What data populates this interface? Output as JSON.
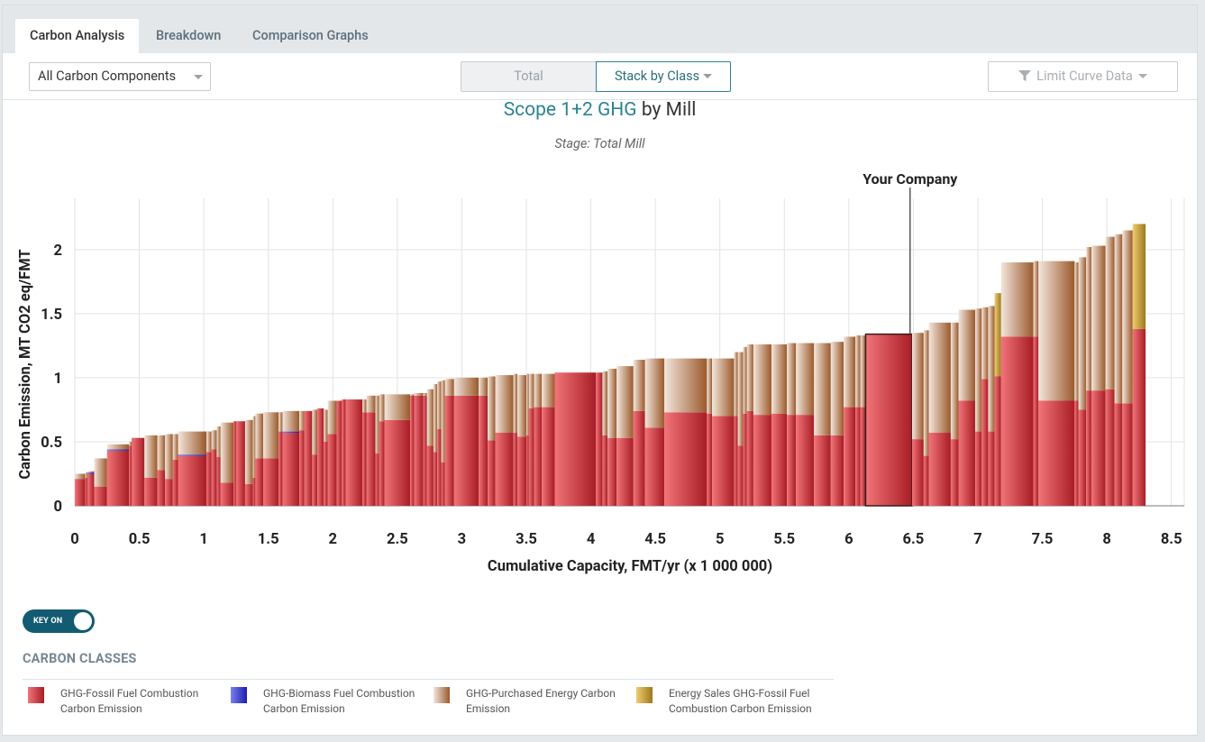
{
  "tabs": [
    {
      "label": "Carbon Analysis",
      "active": true
    },
    {
      "label": "Breakdown",
      "active": false
    },
    {
      "label": "Comparison Graphs",
      "active": false
    }
  ],
  "toolbar": {
    "components_select": "All Carbon Components",
    "view_total": "Total",
    "view_stack": "Stack by Class",
    "limit_curve": "Limit Curve Data"
  },
  "chart_header": {
    "title_highlight": "Scope 1+2 GHG",
    "title_rest": " by Mill",
    "subtitle": "Stage: Total Mill"
  },
  "key_toggle": {
    "label": "KEY ON",
    "on": true
  },
  "legend": {
    "title": "CARBON CLASSES",
    "items": [
      {
        "label": "GHG-Fossil Fuel Combustion Carbon Emission",
        "color_light": "#f17478",
        "color_dark": "#a81d25"
      },
      {
        "label": "GHG-Biomass Fuel Combustion Carbon Emission",
        "color_light": "#7b7ff0",
        "color_dark": "#1a1db0"
      },
      {
        "label": "GHG-Purchased Energy Carbon Emission",
        "color_light": "#f3e6dc",
        "color_dark": "#9a5a2c"
      },
      {
        "label": "Energy Sales GHG-Fossil Fuel Combustion Carbon Emission",
        "color_light": "#f0cc70",
        "color_dark": "#9c7a1c"
      }
    ]
  },
  "chart_data": {
    "type": "bar",
    "variant": "stacked cost curve (bar width = capacity)",
    "title": "Scope 1+2 GHG by Mill",
    "subtitle": "Stage: Total Mill",
    "xlabel": "Cumulative Capacity, FMT/yr (x 1 000 000)",
    "ylabel": "Carbon Emission, MT CO2 eq/FMT",
    "xlim": [
      0,
      8.6
    ],
    "ylim": [
      0,
      2.4
    ],
    "xticks": [
      "0",
      "0.5",
      "1",
      "1.5",
      "2",
      "2.5",
      "3",
      "3.5",
      "4",
      "4.5",
      "5",
      "5.5",
      "6",
      "6.5",
      "7",
      "7.5",
      "8",
      "8.5"
    ],
    "yticks": [
      "0",
      "0.5",
      "1",
      "1.5",
      "2"
    ],
    "annotation": {
      "label": "Your Company",
      "x": 6.3
    },
    "highlight_bar_index": 79,
    "series_names": [
      "GHG-Fossil Fuel Combustion Carbon Emission",
      "GHG-Biomass Fuel Combustion Carbon Emission",
      "GHG-Purchased Energy Carbon Emission",
      "Energy Sales GHG-Fossil Fuel Combustion Carbon Emission"
    ],
    "bars": [
      {
        "x0": 0.0,
        "x1": 0.08,
        "fossil": 0.21,
        "biomass": 0,
        "purchased": 0.04,
        "sales": 0
      },
      {
        "x0": 0.08,
        "x1": 0.1,
        "fossil": 0.22,
        "biomass": 0,
        "purchased": 0.04,
        "sales": 0
      },
      {
        "x0": 0.1,
        "x1": 0.15,
        "fossil": 0.25,
        "biomass": 0.01,
        "purchased": 0.01,
        "sales": 0
      },
      {
        "x0": 0.15,
        "x1": 0.25,
        "fossil": 0.15,
        "biomass": 0,
        "purchased": 0.22,
        "sales": 0
      },
      {
        "x0": 0.25,
        "x1": 0.42,
        "fossil": 0.43,
        "biomass": 0.01,
        "purchased": 0.04,
        "sales": 0
      },
      {
        "x0": 0.42,
        "x1": 0.44,
        "fossil": 0.47,
        "biomass": 0,
        "purchased": 0.03,
        "sales": 0
      },
      {
        "x0": 0.44,
        "x1": 0.54,
        "fossil": 0.53,
        "biomass": 0,
        "purchased": 0,
        "sales": 0
      },
      {
        "x0": 0.54,
        "x1": 0.64,
        "fossil": 0.22,
        "biomass": 0,
        "purchased": 0.33,
        "sales": 0
      },
      {
        "x0": 0.64,
        "x1": 0.7,
        "fossil": 0.28,
        "biomass": 0,
        "purchased": 0.27,
        "sales": 0
      },
      {
        "x0": 0.7,
        "x1": 0.76,
        "fossil": 0.21,
        "biomass": 0,
        "purchased": 0.35,
        "sales": 0
      },
      {
        "x0": 0.76,
        "x1": 0.8,
        "fossil": 0.36,
        "biomass": 0,
        "purchased": 0.2,
        "sales": 0
      },
      {
        "x0": 0.8,
        "x1": 1.02,
        "fossil": 0.39,
        "biomass": 0.01,
        "purchased": 0.18,
        "sales": 0
      },
      {
        "x0": 1.02,
        "x1": 1.06,
        "fossil": 0.42,
        "biomass": 0,
        "purchased": 0.16,
        "sales": 0
      },
      {
        "x0": 1.06,
        "x1": 1.1,
        "fossil": 0.44,
        "biomass": 0,
        "purchased": 0.15,
        "sales": 0
      },
      {
        "x0": 1.1,
        "x1": 1.13,
        "fossil": 0.38,
        "biomass": 0,
        "purchased": 0.24,
        "sales": 0
      },
      {
        "x0": 1.13,
        "x1": 1.23,
        "fossil": 0.18,
        "biomass": 0,
        "purchased": 0.47,
        "sales": 0
      },
      {
        "x0": 1.23,
        "x1": 1.25,
        "fossil": 0.66,
        "biomass": 0,
        "purchased": 0,
        "sales": 0
      },
      {
        "x0": 1.25,
        "x1": 1.32,
        "fossil": 0.66,
        "biomass": 0,
        "purchased": 0,
        "sales": 0
      },
      {
        "x0": 1.32,
        "x1": 1.38,
        "fossil": 0.17,
        "biomass": 0,
        "purchased": 0.5,
        "sales": 0
      },
      {
        "x0": 1.38,
        "x1": 1.4,
        "fossil": 0.22,
        "biomass": 0,
        "purchased": 0.48,
        "sales": 0
      },
      {
        "x0": 1.4,
        "x1": 1.46,
        "fossil": 0.37,
        "biomass": 0,
        "purchased": 0.35,
        "sales": 0
      },
      {
        "x0": 1.46,
        "x1": 1.58,
        "fossil": 0.37,
        "biomass": 0,
        "purchased": 0.36,
        "sales": 0
      },
      {
        "x0": 1.58,
        "x1": 1.61,
        "fossil": 0.58,
        "biomass": 0,
        "purchased": 0.15,
        "sales": 0
      },
      {
        "x0": 1.61,
        "x1": 1.74,
        "fossil": 0.57,
        "biomass": 0.01,
        "purchased": 0.16,
        "sales": 0
      },
      {
        "x0": 1.74,
        "x1": 1.78,
        "fossil": 0.59,
        "biomass": 0,
        "purchased": 0.15,
        "sales": 0
      },
      {
        "x0": 1.78,
        "x1": 1.84,
        "fossil": 0.74,
        "biomass": 0,
        "purchased": 0,
        "sales": 0
      },
      {
        "x0": 1.84,
        "x1": 1.88,
        "fossil": 0.4,
        "biomass": 0,
        "purchased": 0.35,
        "sales": 0
      },
      {
        "x0": 1.88,
        "x1": 1.93,
        "fossil": 0.76,
        "biomass": 0,
        "purchased": 0,
        "sales": 0
      },
      {
        "x0": 1.93,
        "x1": 1.96,
        "fossil": 0.5,
        "biomass": 0,
        "purchased": 0.25,
        "sales": 0
      },
      {
        "x0": 1.96,
        "x1": 2.03,
        "fossil": 0.56,
        "biomass": 0,
        "purchased": 0.26,
        "sales": 0
      },
      {
        "x0": 2.03,
        "x1": 2.07,
        "fossil": 0.82,
        "biomass": 0,
        "purchased": 0,
        "sales": 0
      },
      {
        "x0": 2.07,
        "x1": 2.1,
        "fossil": 0.83,
        "biomass": 0,
        "purchased": 0,
        "sales": 0
      },
      {
        "x0": 2.1,
        "x1": 2.23,
        "fossil": 0.83,
        "biomass": 0,
        "purchased": 0,
        "sales": 0
      },
      {
        "x0": 2.23,
        "x1": 2.26,
        "fossil": 0.73,
        "biomass": 0,
        "purchased": 0.1,
        "sales": 0
      },
      {
        "x0": 2.26,
        "x1": 2.33,
        "fossil": 0.73,
        "biomass": 0,
        "purchased": 0.13,
        "sales": 0
      },
      {
        "x0": 2.33,
        "x1": 2.36,
        "fossil": 0.41,
        "biomass": 0,
        "purchased": 0.45,
        "sales": 0
      },
      {
        "x0": 2.36,
        "x1": 2.4,
        "fossil": 0.66,
        "biomass": 0,
        "purchased": 0.21,
        "sales": 0
      },
      {
        "x0": 2.4,
        "x1": 2.6,
        "fossil": 0.67,
        "biomass": 0,
        "purchased": 0.2,
        "sales": 0
      },
      {
        "x0": 2.6,
        "x1": 2.63,
        "fossil": 0.86,
        "biomass": 0,
        "purchased": 0.01,
        "sales": 0
      },
      {
        "x0": 2.63,
        "x1": 2.7,
        "fossil": 0.86,
        "biomass": 0,
        "purchased": 0.02,
        "sales": 0
      },
      {
        "x0": 2.7,
        "x1": 2.73,
        "fossil": 0.86,
        "biomass": 0,
        "purchased": 0.02,
        "sales": 0
      },
      {
        "x0": 2.73,
        "x1": 2.78,
        "fossil": 0.47,
        "biomass": 0,
        "purchased": 0.44,
        "sales": 0
      },
      {
        "x0": 2.78,
        "x1": 2.81,
        "fossil": 0.42,
        "biomass": 0,
        "purchased": 0.53,
        "sales": 0
      },
      {
        "x0": 2.81,
        "x1": 2.84,
        "fossil": 0.6,
        "biomass": 0,
        "purchased": 0.37,
        "sales": 0
      },
      {
        "x0": 2.84,
        "x1": 2.87,
        "fossil": 0.34,
        "biomass": 0,
        "purchased": 0.64,
        "sales": 0
      },
      {
        "x0": 2.87,
        "x1": 2.94,
        "fossil": 0.86,
        "biomass": 0,
        "purchased": 0.13,
        "sales": 0
      },
      {
        "x0": 2.94,
        "x1": 3.13,
        "fossil": 0.86,
        "biomass": 0,
        "purchased": 0.14,
        "sales": 0
      },
      {
        "x0": 3.13,
        "x1": 3.2,
        "fossil": 0.86,
        "biomass": 0,
        "purchased": 0.14,
        "sales": 0
      },
      {
        "x0": 3.2,
        "x1": 3.26,
        "fossil": 0.51,
        "biomass": 0,
        "purchased": 0.5,
        "sales": 0
      },
      {
        "x0": 3.26,
        "x1": 3.4,
        "fossil": 0.57,
        "biomass": 0,
        "purchased": 0.45,
        "sales": 0
      },
      {
        "x0": 3.4,
        "x1": 3.43,
        "fossil": 0.57,
        "biomass": 0,
        "purchased": 0.46,
        "sales": 0
      },
      {
        "x0": 3.43,
        "x1": 3.5,
        "fossil": 0.54,
        "biomass": 0,
        "purchased": 0.48,
        "sales": 0
      },
      {
        "x0": 3.5,
        "x1": 3.52,
        "fossil": 0.55,
        "biomass": 0,
        "purchased": 0.48,
        "sales": 0
      },
      {
        "x0": 3.52,
        "x1": 3.56,
        "fossil": 0.76,
        "biomass": 0,
        "purchased": 0.27,
        "sales": 0
      },
      {
        "x0": 3.56,
        "x1": 3.62,
        "fossil": 0.77,
        "biomass": 0,
        "purchased": 0.26,
        "sales": 0
      },
      {
        "x0": 3.62,
        "x1": 3.72,
        "fossil": 0.77,
        "biomass": 0,
        "purchased": 0.26,
        "sales": 0
      },
      {
        "x0": 3.72,
        "x1": 4.04,
        "fossil": 1.04,
        "biomass": 0,
        "purchased": 0,
        "sales": 0
      },
      {
        "x0": 4.04,
        "x1": 4.09,
        "fossil": 1.04,
        "biomass": 0,
        "purchased": 0,
        "sales": 0
      },
      {
        "x0": 4.09,
        "x1": 4.13,
        "fossil": 0.55,
        "biomass": 0,
        "purchased": 0.5,
        "sales": 0
      },
      {
        "x0": 4.13,
        "x1": 4.2,
        "fossil": 0.53,
        "biomass": 0,
        "purchased": 0.54,
        "sales": 0
      },
      {
        "x0": 4.2,
        "x1": 4.33,
        "fossil": 0.53,
        "biomass": 0,
        "purchased": 0.56,
        "sales": 0
      },
      {
        "x0": 4.33,
        "x1": 4.42,
        "fossil": 0.74,
        "biomass": 0,
        "purchased": 0.4,
        "sales": 0
      },
      {
        "x0": 4.42,
        "x1": 4.57,
        "fossil": 0.61,
        "biomass": 0,
        "purchased": 0.54,
        "sales": 0
      },
      {
        "x0": 4.57,
        "x1": 4.9,
        "fossil": 0.73,
        "biomass": 0,
        "purchased": 0.42,
        "sales": 0
      },
      {
        "x0": 4.9,
        "x1": 4.94,
        "fossil": 0.72,
        "biomass": 0,
        "purchased": 0.43,
        "sales": 0
      },
      {
        "x0": 4.94,
        "x1": 5.11,
        "fossil": 0.7,
        "biomass": 0,
        "purchased": 0.45,
        "sales": 0
      },
      {
        "x0": 5.11,
        "x1": 5.14,
        "fossil": 0.7,
        "biomass": 0,
        "purchased": 0.5,
        "sales": 0
      },
      {
        "x0": 5.14,
        "x1": 5.18,
        "fossil": 0.47,
        "biomass": 0,
        "purchased": 0.73,
        "sales": 0
      },
      {
        "x0": 5.18,
        "x1": 5.21,
        "fossil": 0.72,
        "biomass": 0,
        "purchased": 0.52,
        "sales": 0
      },
      {
        "x0": 5.21,
        "x1": 5.26,
        "fossil": 0.74,
        "biomass": 0,
        "purchased": 0.52,
        "sales": 0
      },
      {
        "x0": 5.26,
        "x1": 5.4,
        "fossil": 0.71,
        "biomass": 0,
        "purchased": 0.55,
        "sales": 0
      },
      {
        "x0": 5.4,
        "x1": 5.52,
        "fossil": 0.72,
        "biomass": 0,
        "purchased": 0.54,
        "sales": 0
      },
      {
        "x0": 5.52,
        "x1": 5.59,
        "fossil": 0.71,
        "biomass": 0,
        "purchased": 0.56,
        "sales": 0
      },
      {
        "x0": 5.59,
        "x1": 5.73,
        "fossil": 0.71,
        "biomass": 0,
        "purchased": 0.56,
        "sales": 0
      },
      {
        "x0": 5.73,
        "x1": 5.86,
        "fossil": 0.55,
        "biomass": 0,
        "purchased": 0.72,
        "sales": 0
      },
      {
        "x0": 5.86,
        "x1": 5.96,
        "fossil": 0.55,
        "biomass": 0,
        "purchased": 0.73,
        "sales": 0
      },
      {
        "x0": 5.96,
        "x1": 6.05,
        "fossil": 0.77,
        "biomass": 0,
        "purchased": 0.55,
        "sales": 0
      },
      {
        "x0": 6.05,
        "x1": 6.09,
        "fossil": 0.77,
        "biomass": 0,
        "purchased": 0.56,
        "sales": 0
      },
      {
        "x0": 6.09,
        "x1": 6.13,
        "fossil": 0.77,
        "biomass": 0,
        "purchased": 0.56,
        "sales": 0
      },
      {
        "x0": 6.13,
        "x1": 6.49,
        "fossil": 1.34,
        "biomass": 0,
        "purchased": 0,
        "sales": 0
      },
      {
        "x0": 6.49,
        "x1": 6.58,
        "fossil": 0.52,
        "biomass": 0,
        "purchased": 0.83,
        "sales": 0
      },
      {
        "x0": 6.58,
        "x1": 6.62,
        "fossil": 0.39,
        "biomass": 0,
        "purchased": 0.98,
        "sales": 0
      },
      {
        "x0": 6.62,
        "x1": 6.79,
        "fossil": 0.57,
        "biomass": 0,
        "purchased": 0.86,
        "sales": 0
      },
      {
        "x0": 6.79,
        "x1": 6.85,
        "fossil": 0.52,
        "biomass": 0,
        "purchased": 0.91,
        "sales": 0
      },
      {
        "x0": 6.85,
        "x1": 6.98,
        "fossil": 0.82,
        "biomass": 0,
        "purchased": 0.71,
        "sales": 0
      },
      {
        "x0": 6.98,
        "x1": 7.03,
        "fossil": 0.58,
        "biomass": 0,
        "purchased": 0.96,
        "sales": 0
      },
      {
        "x0": 7.03,
        "x1": 7.08,
        "fossil": 0.99,
        "biomass": 0,
        "purchased": 0.56,
        "sales": 0
      },
      {
        "x0": 7.08,
        "x1": 7.13,
        "fossil": 0.58,
        "biomass": 0,
        "purchased": 0.98,
        "sales": 0
      },
      {
        "x0": 7.13,
        "x1": 7.18,
        "fossil": 1.01,
        "biomass": 0,
        "purchased": 0,
        "sales": 0.65
      },
      {
        "x0": 7.18,
        "x1": 7.43,
        "fossil": 1.32,
        "biomass": 0,
        "purchased": 0.58,
        "sales": 0
      },
      {
        "x0": 7.43,
        "x1": 7.47,
        "fossil": 1.32,
        "biomass": 0,
        "purchased": 0.59,
        "sales": 0
      },
      {
        "x0": 7.47,
        "x1": 7.75,
        "fossil": 0.82,
        "biomass": 0,
        "purchased": 1.09,
        "sales": 0
      },
      {
        "x0": 7.75,
        "x1": 7.78,
        "fossil": 0.82,
        "biomass": 0,
        "purchased": 1.08,
        "sales": 0
      },
      {
        "x0": 7.78,
        "x1": 7.84,
        "fossil": 0.75,
        "biomass": 0,
        "purchased": 1.19,
        "sales": 0
      },
      {
        "x0": 7.84,
        "x1": 7.88,
        "fossil": 0.9,
        "biomass": 0,
        "purchased": 1.12,
        "sales": 0
      },
      {
        "x0": 7.88,
        "x1": 7.99,
        "fossil": 0.9,
        "biomass": 0,
        "purchased": 1.13,
        "sales": 0
      },
      {
        "x0": 7.99,
        "x1": 8.06,
        "fossil": 0.91,
        "biomass": 0,
        "purchased": 1.19,
        "sales": 0
      },
      {
        "x0": 8.06,
        "x1": 8.12,
        "fossil": 0.8,
        "biomass": 0,
        "purchased": 1.32,
        "sales": 0
      },
      {
        "x0": 8.12,
        "x1": 8.2,
        "fossil": 0.8,
        "biomass": 0,
        "purchased": 1.35,
        "sales": 0
      },
      {
        "x0": 8.2,
        "x1": 8.3,
        "fossil": 1.38,
        "biomass": 0,
        "purchased": 0,
        "sales": 0.82
      }
    ]
  }
}
